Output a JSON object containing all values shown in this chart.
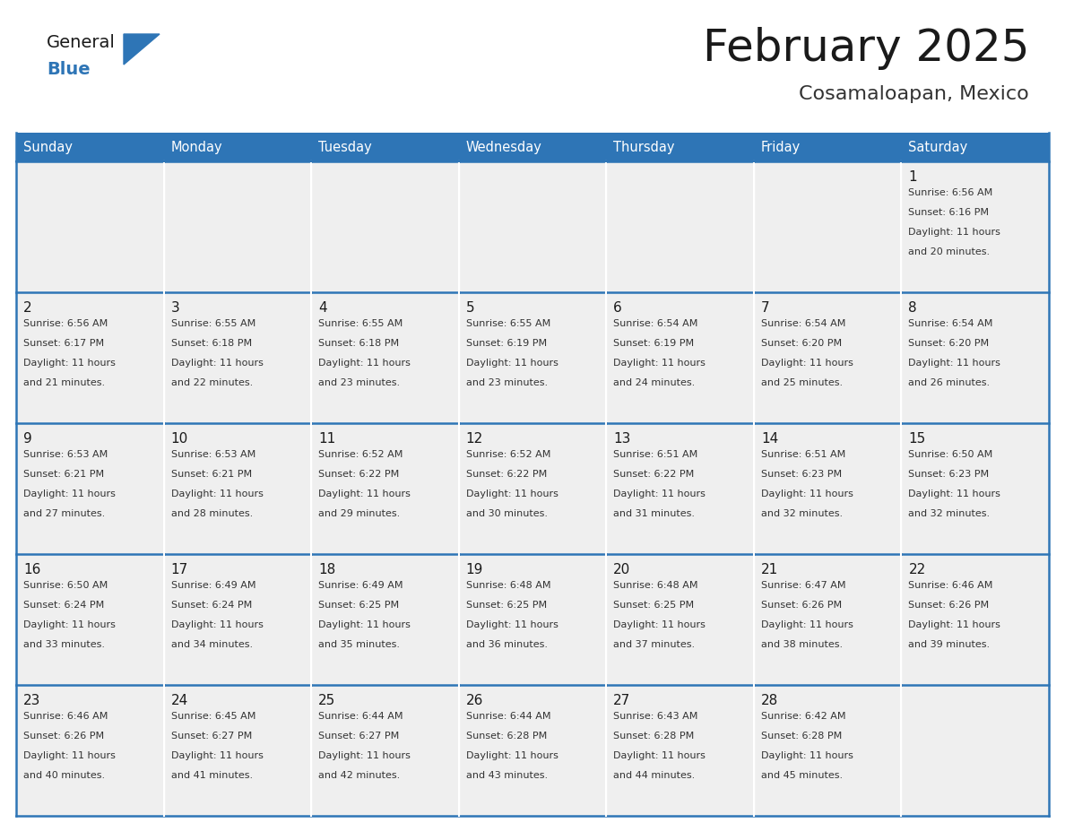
{
  "title": "February 2025",
  "subtitle": "Cosamaloapan, Mexico",
  "header_bg_color": "#2E75B6",
  "header_text_color": "#FFFFFF",
  "day_names": [
    "Sunday",
    "Monday",
    "Tuesday",
    "Wednesday",
    "Thursday",
    "Friday",
    "Saturday"
  ],
  "cell_bg_color": "#EFEFEF",
  "cell_bg_white": "#FFFFFF",
  "cell_border_color": "#2E75B6",
  "day_num_color": "#1a1a1a",
  "info_text_color": "#333333",
  "title_color": "#1a1a1a",
  "subtitle_color": "#333333",
  "logo_general_color": "#1a1a1a",
  "logo_blue_color": "#2E75B6",
  "fig_width": 11.88,
  "fig_height": 9.18,
  "calendar_data": [
    [
      null,
      null,
      null,
      null,
      null,
      null,
      {
        "day": 1,
        "sunrise": "6:56 AM",
        "sunset": "6:16 PM",
        "daylight_hours": 11,
        "daylight_minutes": 20
      }
    ],
    [
      {
        "day": 2,
        "sunrise": "6:56 AM",
        "sunset": "6:17 PM",
        "daylight_hours": 11,
        "daylight_minutes": 21
      },
      {
        "day": 3,
        "sunrise": "6:55 AM",
        "sunset": "6:18 PM",
        "daylight_hours": 11,
        "daylight_minutes": 22
      },
      {
        "day": 4,
        "sunrise": "6:55 AM",
        "sunset": "6:18 PM",
        "daylight_hours": 11,
        "daylight_minutes": 23
      },
      {
        "day": 5,
        "sunrise": "6:55 AM",
        "sunset": "6:19 PM",
        "daylight_hours": 11,
        "daylight_minutes": 23
      },
      {
        "day": 6,
        "sunrise": "6:54 AM",
        "sunset": "6:19 PM",
        "daylight_hours": 11,
        "daylight_minutes": 24
      },
      {
        "day": 7,
        "sunrise": "6:54 AM",
        "sunset": "6:20 PM",
        "daylight_hours": 11,
        "daylight_minutes": 25
      },
      {
        "day": 8,
        "sunrise": "6:54 AM",
        "sunset": "6:20 PM",
        "daylight_hours": 11,
        "daylight_minutes": 26
      }
    ],
    [
      {
        "day": 9,
        "sunrise": "6:53 AM",
        "sunset": "6:21 PM",
        "daylight_hours": 11,
        "daylight_minutes": 27
      },
      {
        "day": 10,
        "sunrise": "6:53 AM",
        "sunset": "6:21 PM",
        "daylight_hours": 11,
        "daylight_minutes": 28
      },
      {
        "day": 11,
        "sunrise": "6:52 AM",
        "sunset": "6:22 PM",
        "daylight_hours": 11,
        "daylight_minutes": 29
      },
      {
        "day": 12,
        "sunrise": "6:52 AM",
        "sunset": "6:22 PM",
        "daylight_hours": 11,
        "daylight_minutes": 30
      },
      {
        "day": 13,
        "sunrise": "6:51 AM",
        "sunset": "6:22 PM",
        "daylight_hours": 11,
        "daylight_minutes": 31
      },
      {
        "day": 14,
        "sunrise": "6:51 AM",
        "sunset": "6:23 PM",
        "daylight_hours": 11,
        "daylight_minutes": 32
      },
      {
        "day": 15,
        "sunrise": "6:50 AM",
        "sunset": "6:23 PM",
        "daylight_hours": 11,
        "daylight_minutes": 32
      }
    ],
    [
      {
        "day": 16,
        "sunrise": "6:50 AM",
        "sunset": "6:24 PM",
        "daylight_hours": 11,
        "daylight_minutes": 33
      },
      {
        "day": 17,
        "sunrise": "6:49 AM",
        "sunset": "6:24 PM",
        "daylight_hours": 11,
        "daylight_minutes": 34
      },
      {
        "day": 18,
        "sunrise": "6:49 AM",
        "sunset": "6:25 PM",
        "daylight_hours": 11,
        "daylight_minutes": 35
      },
      {
        "day": 19,
        "sunrise": "6:48 AM",
        "sunset": "6:25 PM",
        "daylight_hours": 11,
        "daylight_minutes": 36
      },
      {
        "day": 20,
        "sunrise": "6:48 AM",
        "sunset": "6:25 PM",
        "daylight_hours": 11,
        "daylight_minutes": 37
      },
      {
        "day": 21,
        "sunrise": "6:47 AM",
        "sunset": "6:26 PM",
        "daylight_hours": 11,
        "daylight_minutes": 38
      },
      {
        "day": 22,
        "sunrise": "6:46 AM",
        "sunset": "6:26 PM",
        "daylight_hours": 11,
        "daylight_minutes": 39
      }
    ],
    [
      {
        "day": 23,
        "sunrise": "6:46 AM",
        "sunset": "6:26 PM",
        "daylight_hours": 11,
        "daylight_minutes": 40
      },
      {
        "day": 24,
        "sunrise": "6:45 AM",
        "sunset": "6:27 PM",
        "daylight_hours": 11,
        "daylight_minutes": 41
      },
      {
        "day": 25,
        "sunrise": "6:44 AM",
        "sunset": "6:27 PM",
        "daylight_hours": 11,
        "daylight_minutes": 42
      },
      {
        "day": 26,
        "sunrise": "6:44 AM",
        "sunset": "6:28 PM",
        "daylight_hours": 11,
        "daylight_minutes": 43
      },
      {
        "day": 27,
        "sunrise": "6:43 AM",
        "sunset": "6:28 PM",
        "daylight_hours": 11,
        "daylight_minutes": 44
      },
      {
        "day": 28,
        "sunrise": "6:42 AM",
        "sunset": "6:28 PM",
        "daylight_hours": 11,
        "daylight_minutes": 45
      },
      null
    ]
  ]
}
